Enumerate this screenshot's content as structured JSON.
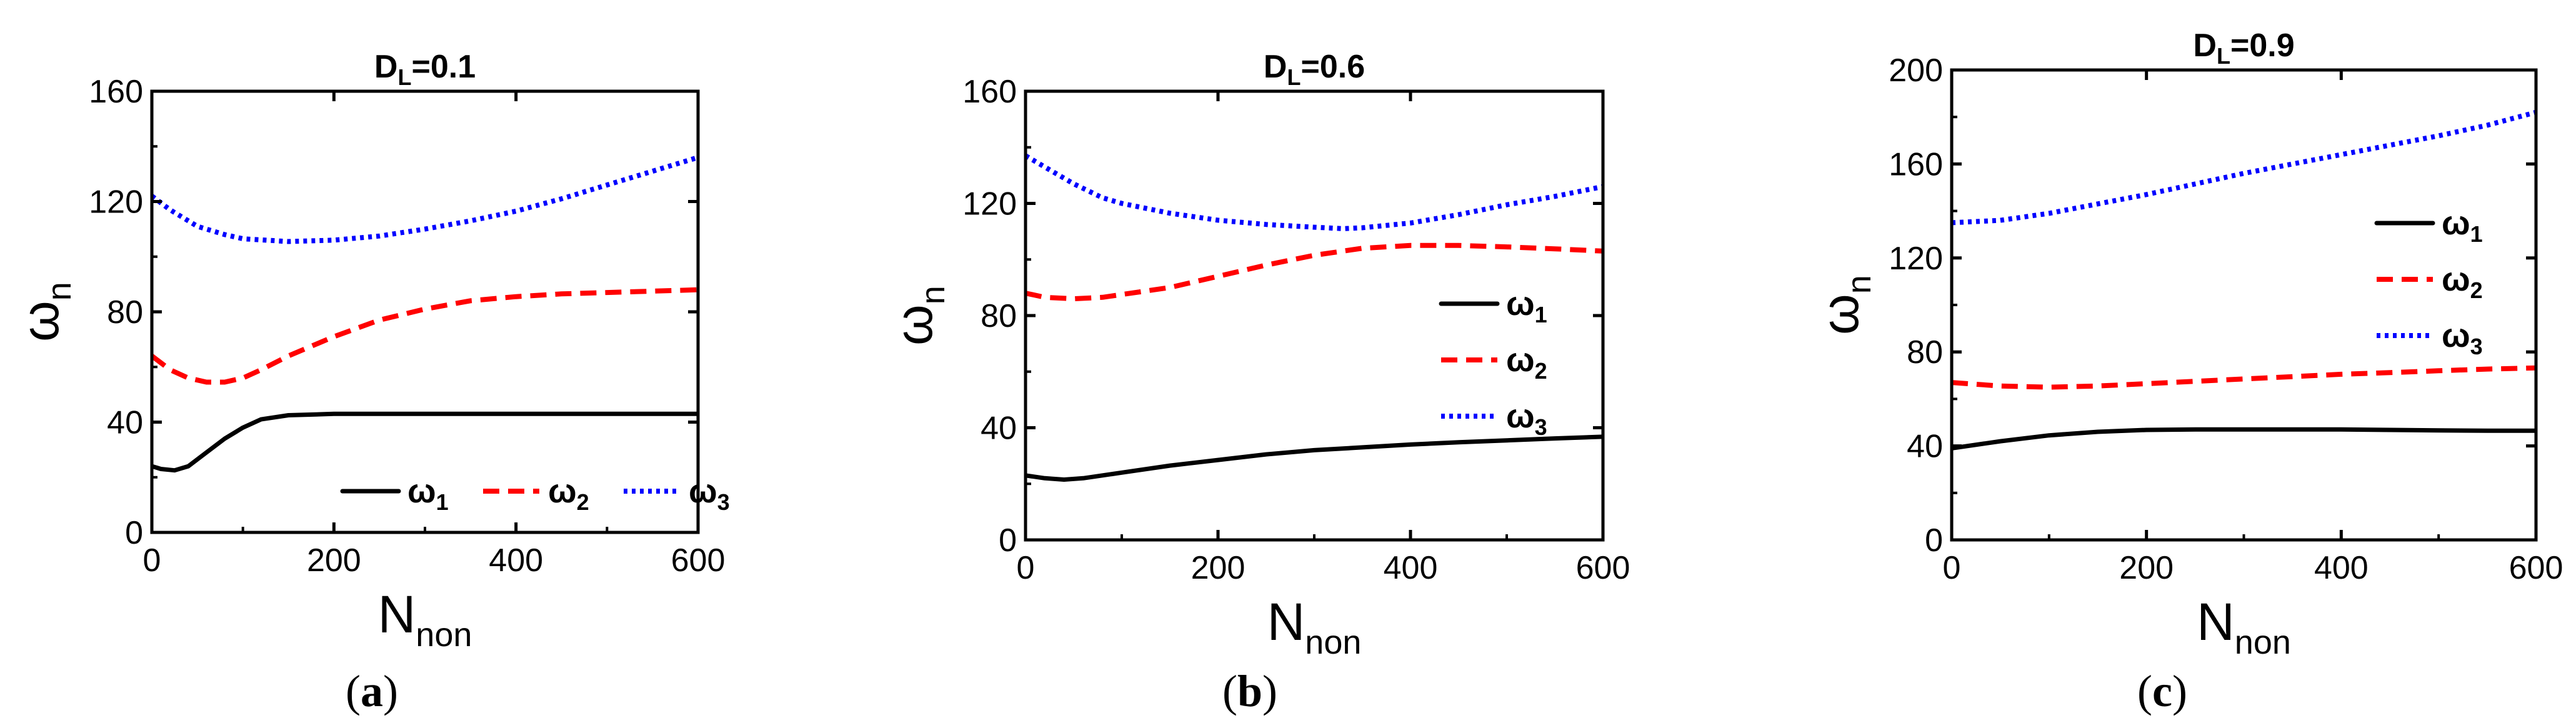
{
  "figure": {
    "captions": [
      {
        "open": "(",
        "letter": "a",
        "close": ")"
      },
      {
        "open": "(",
        "letter": "b",
        "close": ")"
      },
      {
        "open": "(",
        "letter": "c",
        "close": ")"
      }
    ]
  },
  "chart_data": [
    {
      "type": "line",
      "panel": "a",
      "title": {
        "base": "D",
        "sub": "L",
        "rest": "=0.1"
      },
      "xlabel": {
        "base": "N",
        "sub": "non"
      },
      "ylabel": {
        "base": "ω",
        "sub": "n"
      },
      "xlim": [
        0,
        600
      ],
      "ylim": [
        0,
        160
      ],
      "xticks": [
        0,
        200,
        400,
        600
      ],
      "yticks": [
        0,
        40,
        80,
        120,
        160
      ],
      "grid": false,
      "legend": {
        "placement": "bottom-right",
        "layout": "horizontal"
      },
      "series": [
        {
          "name": "ω1",
          "base": "ω",
          "sub": "1",
          "color": "#000000",
          "style": "solid",
          "x": [
            0,
            10,
            25,
            40,
            60,
            80,
            100,
            120,
            150,
            200,
            250,
            300,
            400,
            500,
            600
          ],
          "y": [
            24,
            23,
            22.5,
            24,
            29,
            34,
            38,
            41,
            42.5,
            43,
            43,
            43,
            43,
            43,
            43
          ]
        },
        {
          "name": "ω2",
          "base": "ω",
          "sub": "2",
          "color": "#ff0000",
          "style": "dashed",
          "x": [
            0,
            20,
            40,
            60,
            80,
            100,
            120,
            150,
            200,
            250,
            300,
            350,
            400,
            450,
            500,
            550,
            600
          ],
          "y": [
            64,
            59,
            56,
            54.5,
            54.5,
            56,
            59,
            64,
            71,
            77,
            81,
            84,
            85.5,
            86.5,
            87,
            87.5,
            88
          ]
        },
        {
          "name": "ω3",
          "base": "ω",
          "sub": "3",
          "color": "#0000ff",
          "style": "dotted",
          "x": [
            0,
            20,
            50,
            80,
            100,
            150,
            200,
            250,
            300,
            350,
            400,
            450,
            500,
            550,
            600
          ],
          "y": [
            122,
            117,
            111,
            108,
            106.5,
            105.5,
            106,
            107.5,
            110,
            113,
            116.5,
            121,
            126,
            131,
            136
          ]
        }
      ]
    },
    {
      "type": "line",
      "panel": "b",
      "title": {
        "base": "D",
        "sub": "L",
        "rest": "=0.6"
      },
      "xlabel": {
        "base": "N",
        "sub": "non"
      },
      "ylabel": {
        "base": "ω",
        "sub": "n"
      },
      "xlim": [
        0,
        600
      ],
      "ylim": [
        0,
        160
      ],
      "xticks": [
        0,
        200,
        400,
        600
      ],
      "yticks": [
        0,
        40,
        80,
        120,
        160
      ],
      "grid": false,
      "legend": {
        "placement": "right",
        "layout": "vertical"
      },
      "series": [
        {
          "name": "ω1",
          "base": "ω",
          "sub": "1",
          "color": "#000000",
          "style": "solid",
          "x": [
            0,
            20,
            40,
            60,
            80,
            100,
            150,
            200,
            250,
            300,
            350,
            400,
            450,
            500,
            550,
            600
          ],
          "y": [
            23,
            22,
            21.5,
            22,
            23,
            24,
            26.5,
            28.5,
            30.5,
            32,
            33,
            34,
            34.8,
            35.5,
            36.2,
            36.8
          ]
        },
        {
          "name": "ω2",
          "base": "ω",
          "sub": "2",
          "color": "#ff0000",
          "style": "dashed",
          "x": [
            0,
            20,
            50,
            80,
            100,
            150,
            200,
            250,
            300,
            350,
            400,
            450,
            500,
            550,
            600
          ],
          "y": [
            88,
            86.5,
            86,
            86.5,
            87.5,
            90,
            94,
            98,
            101.5,
            104,
            105,
            105,
            104.5,
            103.8,
            103
          ]
        },
        {
          "name": "ω3",
          "base": "ω",
          "sub": "3",
          "color": "#0000ff",
          "style": "dotted",
          "x": [
            0,
            20,
            50,
            80,
            100,
            150,
            200,
            250,
            300,
            330,
            350,
            400,
            450,
            500,
            550,
            600
          ],
          "y": [
            137,
            133,
            127,
            122,
            120,
            116.5,
            114,
            112.5,
            111.5,
            111,
            111.3,
            113,
            116,
            119.5,
            122.5,
            126
          ]
        }
      ]
    },
    {
      "type": "line",
      "panel": "c",
      "title": {
        "base": "D",
        "sub": "L",
        "rest": "=0.9"
      },
      "xlabel": {
        "base": "N",
        "sub": "non"
      },
      "ylabel": {
        "base": "ω",
        "sub": "n"
      },
      "xlim": [
        0,
        600
      ],
      "ylim": [
        0,
        200
      ],
      "xticks": [
        0,
        200,
        400,
        600
      ],
      "yticks": [
        0,
        40,
        80,
        120,
        160,
        200
      ],
      "grid": false,
      "legend": {
        "placement": "right",
        "layout": "vertical"
      },
      "series": [
        {
          "name": "ω1",
          "base": "ω",
          "sub": "1",
          "color": "#000000",
          "style": "solid",
          "x": [
            0,
            50,
            100,
            150,
            200,
            250,
            300,
            350,
            400,
            450,
            500,
            550,
            600
          ],
          "y": [
            39,
            42,
            44.5,
            46,
            46.8,
            47,
            47,
            47,
            47,
            46.8,
            46.6,
            46.5,
            46.5
          ]
        },
        {
          "name": "ω2",
          "base": "ω",
          "sub": "2",
          "color": "#ff0000",
          "style": "dashed",
          "x": [
            0,
            50,
            100,
            150,
            200,
            250,
            300,
            350,
            400,
            450,
            500,
            550,
            600
          ],
          "y": [
            67,
            65.5,
            65,
            65.5,
            66.5,
            67.5,
            68.5,
            69.5,
            70.5,
            71.2,
            72,
            72.7,
            73.2
          ]
        },
        {
          "name": "ω3",
          "base": "ω",
          "sub": "3",
          "color": "#0000ff",
          "style": "dotted",
          "x": [
            0,
            50,
            100,
            150,
            200,
            250,
            300,
            350,
            400,
            450,
            500,
            550,
            600
          ],
          "y": [
            135,
            136,
            139,
            143,
            147,
            151.5,
            156,
            160,
            164,
            168,
            172,
            176.5,
            182
          ]
        }
      ]
    }
  ]
}
